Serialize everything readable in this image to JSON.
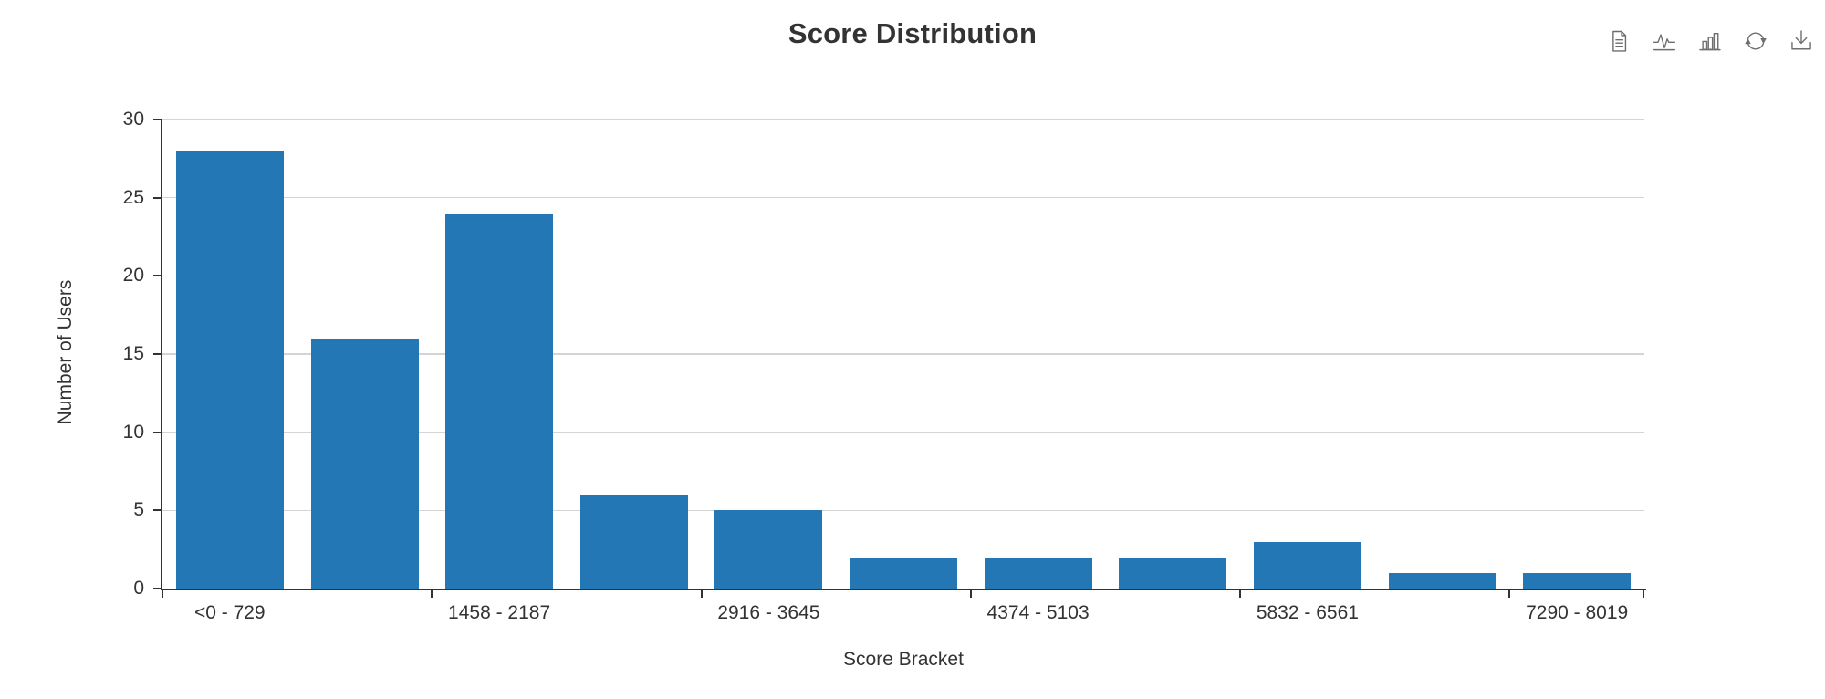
{
  "header": {
    "title": "Score Distribution"
  },
  "toolbar": {
    "icons": [
      {
        "name": "data-view-icon"
      },
      {
        "name": "line-chart-icon"
      },
      {
        "name": "bar-chart-icon"
      },
      {
        "name": "refresh-icon"
      },
      {
        "name": "download-icon"
      }
    ]
  },
  "chart_data": {
    "type": "bar",
    "title": "Score Distribution",
    "xlabel": "Score Bracket",
    "ylabel": "Number of Users",
    "ylim": [
      0,
      30
    ],
    "y_ticks": [
      0,
      5,
      10,
      15,
      20,
      25,
      30
    ],
    "x_label_interval": 2,
    "grid": true,
    "legend": false,
    "bar_color": "#2277B4",
    "categories": [
      "<0 - 729",
      "",
      "1458 - 2187",
      "",
      "2916 - 3645",
      "",
      "4374 - 5103",
      "",
      "5832 - 6561",
      "",
      "7290 - 8019"
    ],
    "values": [
      28,
      16,
      24,
      6,
      5,
      2,
      2,
      2,
      3,
      1,
      1
    ]
  }
}
